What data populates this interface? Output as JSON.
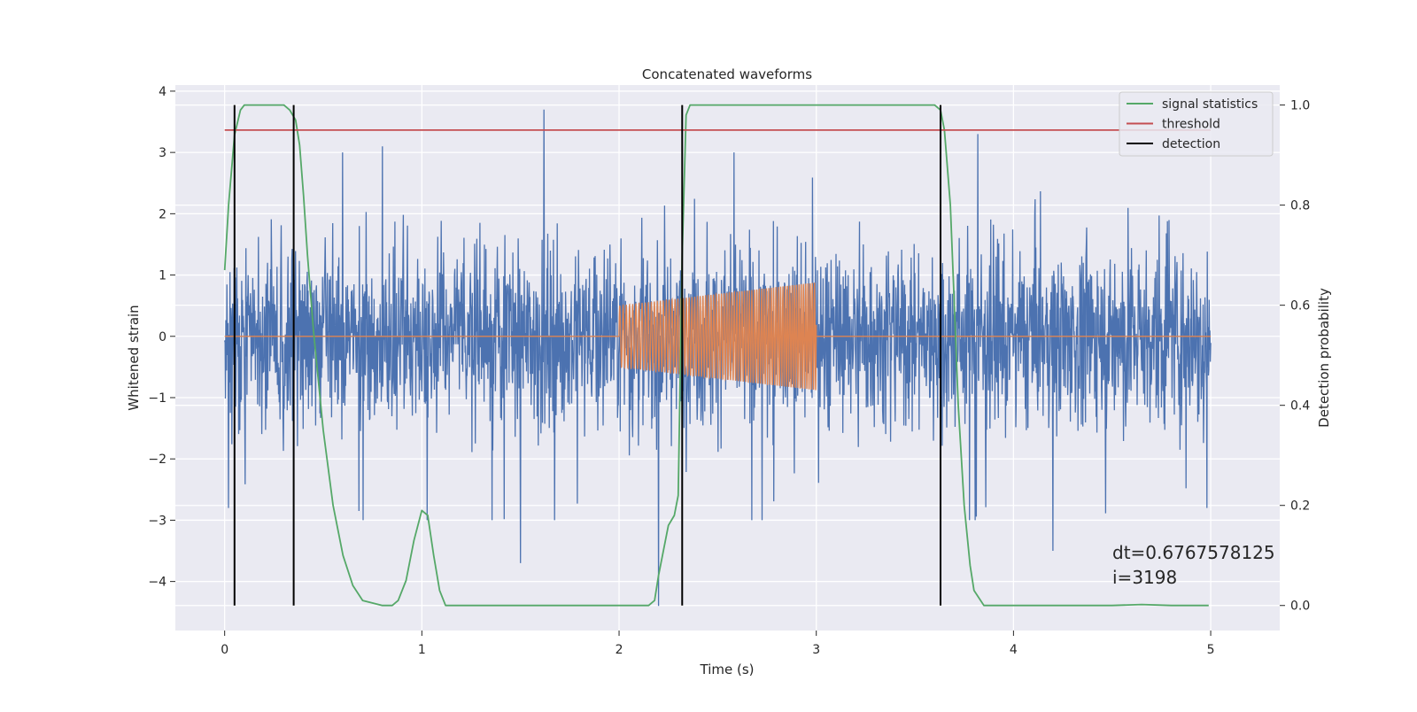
{
  "chart_data": {
    "type": "line",
    "title": "Concatenated waveforms",
    "xlabel": "Time (s)",
    "ylabel": "Whitened strain",
    "ylabel_right": "Detection probability",
    "xlim": [
      -0.25,
      5.35
    ],
    "ylim": [
      -4.8,
      4.1
    ],
    "ylim_right": [
      -0.05,
      1.04
    ],
    "x_ticks": [
      0,
      1,
      2,
      3,
      4,
      5
    ],
    "x_tick_labels": [
      "0",
      "1",
      "2",
      "3",
      "4",
      "5"
    ],
    "y_ticks": [
      4,
      3,
      2,
      1,
      0,
      -1,
      -2,
      -3,
      -4
    ],
    "y_tick_labels": [
      "4",
      "3",
      "2",
      "1",
      "0",
      "−1",
      "−2",
      "−3",
      "−4"
    ],
    "y2_ticks": [
      1.0,
      0.8,
      0.6,
      0.4,
      0.2,
      0.0
    ],
    "y2_tick_labels": [
      "1.0",
      "0.8",
      "0.6",
      "0.4",
      "0.2",
      "0.0"
    ],
    "grid": true,
    "legend_position": "top-right",
    "legend": [
      {
        "label": "signal statistics",
        "color": "#55a868"
      },
      {
        "label": "threshold",
        "color": "#c44e52"
      },
      {
        "label": "detection",
        "color": "#000000"
      }
    ],
    "noise": {
      "x_range": [
        0,
        5
      ],
      "envelope": 1.4,
      "spikes": [
        [
          1.62,
          3.7
        ],
        [
          2.2,
          -4.4
        ],
        [
          1.5,
          -3.7
        ],
        [
          3.82,
          3.3
        ],
        [
          4.2,
          -3.5
        ],
        [
          0.02,
          -2.8
        ],
        [
          4.98,
          -2.8
        ],
        [
          0.35,
          -2.3
        ],
        [
          0.8,
          3.1
        ]
      ],
      "color": "#4c72b0"
    },
    "injection": {
      "x_range": [
        2.0,
        3.0
      ],
      "amplitude_start": 0.5,
      "amplitude_end": 0.88,
      "frequency_start": 60,
      "frequency_end": 90,
      "color": "#dd8452"
    },
    "series": [
      {
        "name": "signal statistics",
        "axis": "right",
        "color": "#55a868",
        "x": [
          0,
          0.02,
          0.05,
          0.08,
          0.1,
          0.15,
          0.2,
          0.3,
          0.33,
          0.36,
          0.38,
          0.4,
          0.42,
          0.45,
          0.5,
          0.55,
          0.6,
          0.65,
          0.7,
          0.8,
          0.85,
          0.88,
          0.92,
          0.96,
          1.0,
          1.03,
          1.06,
          1.09,
          1.12,
          1.2,
          1.5,
          2.0,
          2.1,
          2.15,
          2.18,
          2.2,
          2.25,
          2.28,
          2.3,
          2.32,
          2.34,
          2.36,
          2.4,
          2.5,
          3.5,
          3.6,
          3.63,
          3.65,
          3.68,
          3.7,
          3.72,
          3.75,
          3.78,
          3.8,
          3.85,
          4.0,
          4.5,
          4.65,
          4.8,
          4.99
        ],
        "y": [
          0.67,
          0.8,
          0.94,
          0.99,
          1.0,
          1.0,
          1.0,
          1.0,
          0.99,
          0.97,
          0.92,
          0.82,
          0.7,
          0.55,
          0.35,
          0.2,
          0.1,
          0.04,
          0.01,
          0.0,
          0.0,
          0.01,
          0.05,
          0.13,
          0.19,
          0.18,
          0.1,
          0.03,
          0.0,
          0.0,
          0.0,
          0.0,
          0.0,
          0.0,
          0.01,
          0.06,
          0.16,
          0.18,
          0.22,
          0.7,
          0.98,
          1.0,
          1.0,
          1.0,
          1.0,
          1.0,
          0.99,
          0.95,
          0.8,
          0.6,
          0.4,
          0.2,
          0.08,
          0.03,
          0.0,
          0.0,
          0.0,
          0.002,
          0.0,
          0.0
        ]
      },
      {
        "name": "threshold",
        "axis": "right",
        "color": "#c44e52",
        "x": [
          0,
          5
        ],
        "y": [
          0.95,
          0.95
        ]
      }
    ],
    "detections": {
      "x": [
        0.05,
        0.35,
        2.32,
        3.63
      ],
      "y_range": [
        0.0,
        1.0
      ],
      "color": "#000000"
    },
    "annotation": {
      "lines": [
        "dt=0.6767578125",
        " i=3198"
      ],
      "x": 4.5,
      "y": 0.1
    }
  }
}
